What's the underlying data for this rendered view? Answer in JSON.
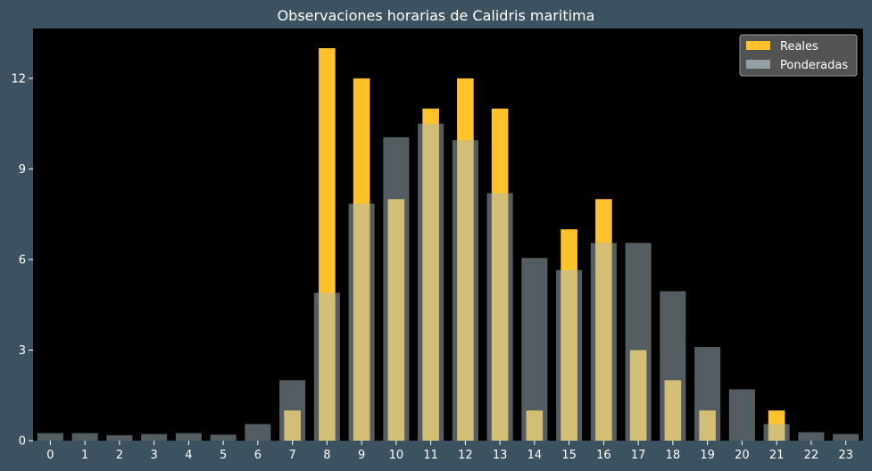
{
  "chart_data": {
    "type": "bar",
    "title": "Observaciones horarias de Calidris maritima",
    "xlabel": "",
    "ylabel": "",
    "categories": [
      "0",
      "1",
      "2",
      "3",
      "4",
      "5",
      "6",
      "7",
      "8",
      "9",
      "10",
      "11",
      "12",
      "13",
      "14",
      "15",
      "16",
      "17",
      "18",
      "19",
      "20",
      "21",
      "22",
      "23"
    ],
    "series": [
      {
        "name": "Reales",
        "color": "#ffc22a",
        "values": [
          0,
          0,
          0,
          0,
          0,
          0,
          0,
          1,
          13,
          12,
          8,
          11,
          12,
          11,
          1,
          7,
          8,
          3,
          2,
          1,
          0,
          1,
          0,
          0
        ]
      },
      {
        "name": "Ponderadas",
        "color": "#a8bac2",
        "values": [
          0.25,
          0.25,
          0.18,
          0.22,
          0.25,
          0.2,
          0.55,
          2.0,
          4.9,
          7.85,
          10.05,
          10.5,
          9.95,
          8.2,
          6.05,
          5.65,
          6.55,
          6.55,
          4.95,
          3.1,
          1.7,
          0.55,
          0.28,
          0.22
        ]
      }
    ],
    "yticks": [
      0,
      3,
      6,
      9,
      12
    ],
    "ylim": [
      0,
      13.65
    ],
    "grid": false,
    "legend_position": "top-right",
    "plot_background": "#000000",
    "figure_background": "#3d5260"
  }
}
